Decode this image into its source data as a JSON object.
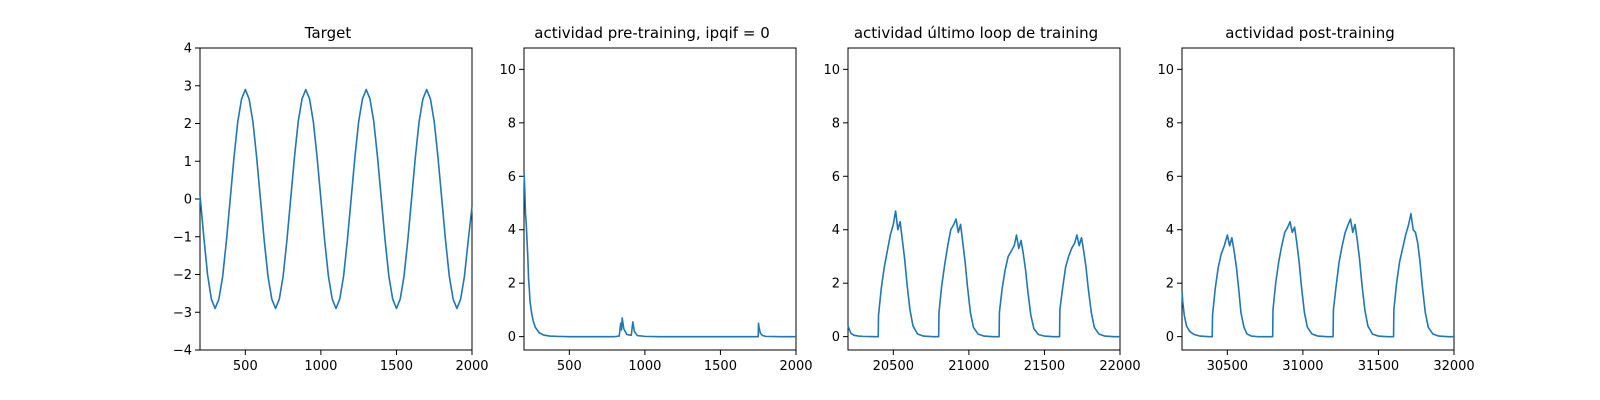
{
  "figure": {
    "background": "#ffffff"
  },
  "chart_data": [
    {
      "type": "line",
      "title": "Target",
      "xlabel": "",
      "ylabel": "",
      "xlim": [
        200,
        2000
      ],
      "ylim": [
        -4,
        4
      ],
      "xticks": [
        500,
        1000,
        1500,
        2000
      ],
      "yticks": [
        -4,
        -3,
        -2,
        -1,
        0,
        1,
        2,
        3,
        4
      ],
      "grid": false,
      "color": "#1f77b4",
      "series": [
        {
          "x": [
            200,
            225,
            250,
            275,
            300,
            325,
            350,
            375,
            400,
            425,
            450,
            475,
            500,
            525,
            550,
            575,
            600,
            625,
            650,
            675,
            700,
            725,
            750,
            775,
            800,
            825,
            850,
            875,
            900,
            925,
            950,
            975,
            1000,
            1025,
            1050,
            1075,
            1100,
            1125,
            1150,
            1175,
            1200,
            1225,
            1250,
            1275,
            1300,
            1325,
            1350,
            1375,
            1400,
            1425,
            1450,
            1475,
            1500,
            1525,
            1550,
            1575,
            1600,
            1625,
            1650,
            1675,
            1700,
            1725,
            1750,
            1775,
            1800,
            1825,
            1850,
            1875,
            1900,
            1925,
            1950,
            1975,
            2000
          ],
          "y": [
            0.1,
            -1.0,
            -2.0,
            -2.65,
            -2.9,
            -2.65,
            -2.05,
            -1.1,
            0.0,
            1.1,
            2.05,
            2.65,
            2.9,
            2.65,
            2.05,
            1.1,
            0.0,
            -1.1,
            -2.05,
            -2.65,
            -2.9,
            -2.65,
            -2.05,
            -1.1,
            0.0,
            1.1,
            2.05,
            2.65,
            2.9,
            2.65,
            2.05,
            1.1,
            0.0,
            -1.1,
            -2.05,
            -2.65,
            -2.9,
            -2.65,
            -2.05,
            -1.1,
            0.0,
            1.1,
            2.05,
            2.65,
            2.9,
            2.65,
            2.05,
            1.1,
            0.0,
            -1.1,
            -2.05,
            -2.65,
            -2.9,
            -2.65,
            -2.05,
            -1.1,
            0.0,
            1.1,
            2.05,
            2.65,
            2.9,
            2.65,
            2.05,
            1.1,
            0.0,
            -1.1,
            -2.05,
            -2.65,
            -2.9,
            -2.65,
            -2.05,
            -1.1,
            -0.2
          ]
        }
      ]
    },
    {
      "type": "line",
      "title": "actividad pre-training, ipqif = 0",
      "xlabel": "",
      "ylabel": "",
      "xlim": [
        200,
        2000
      ],
      "ylim": [
        -0.5,
        10.8
      ],
      "xticks": [
        500,
        1000,
        1500,
        2000
      ],
      "yticks": [
        0,
        2,
        4,
        6,
        8,
        10
      ],
      "grid": false,
      "color": "#1f77b4",
      "series": [
        {
          "x": [
            200,
            205,
            210,
            215,
            220,
            225,
            230,
            235,
            240,
            250,
            260,
            275,
            300,
            330,
            370,
            420,
            500,
            600,
            700,
            800,
            830,
            840,
            845,
            850,
            860,
            880,
            910,
            920,
            930,
            950,
            1000,
            1100,
            1200,
            1300,
            1400,
            1500,
            1600,
            1700,
            1750,
            1752,
            1755,
            1765,
            1780,
            1800,
            1900,
            2000
          ],
          "y": [
            6.2,
            5.5,
            4.6,
            4.2,
            3.6,
            3.0,
            2.2,
            1.8,
            1.3,
            0.9,
            0.6,
            0.35,
            0.15,
            0.06,
            0.02,
            0.01,
            0.0,
            0.0,
            0.0,
            0.0,
            0.02,
            0.5,
            0.25,
            0.7,
            0.3,
            0.08,
            0.05,
            0.55,
            0.2,
            0.04,
            0.01,
            0.0,
            0.0,
            0.0,
            0.0,
            0.0,
            0.0,
            0.0,
            0.0,
            0.5,
            0.35,
            0.12,
            0.04,
            0.01,
            0.0,
            0.0
          ]
        }
      ]
    },
    {
      "type": "line",
      "title": "actividad último loop de training",
      "xlabel": "",
      "ylabel": "",
      "xlim": [
        20200,
        22000
      ],
      "ylim": [
        -0.5,
        10.8
      ],
      "xticks": [
        20500,
        21000,
        21500,
        22000
      ],
      "yticks": [
        0,
        2,
        4,
        6,
        8,
        10
      ],
      "grid": false,
      "color": "#1f77b4",
      "series": [
        {
          "x": [
            20200,
            20210,
            20220,
            20240,
            20270,
            20300,
            20380,
            20400,
            20402,
            20420,
            20440,
            20460,
            20480,
            20500,
            20515,
            20530,
            20545,
            20560,
            20575,
            20590,
            20610,
            20630,
            20660,
            20700,
            20760,
            20800,
            20802,
            20820,
            20840,
            20860,
            20880,
            20900,
            20915,
            20930,
            20945,
            20960,
            20975,
            20990,
            21010,
            21030,
            21060,
            21100,
            21160,
            21200,
            21202,
            21220,
            21240,
            21260,
            21280,
            21300,
            21315,
            21330,
            21345,
            21360,
            21375,
            21390,
            21410,
            21430,
            21460,
            21500,
            21560,
            21600,
            21602,
            21620,
            21640,
            21660,
            21680,
            21700,
            21715,
            21730,
            21745,
            21760,
            21775,
            21790,
            21810,
            21830,
            21860,
            21900,
            21960,
            22000
          ],
          "y": [
            0.4,
            0.25,
            0.12,
            0.05,
            0.02,
            0.01,
            0.0,
            0.0,
            0.8,
            1.8,
            2.6,
            3.2,
            3.8,
            4.2,
            4.7,
            4.0,
            4.3,
            3.6,
            2.9,
            2.0,
            1.0,
            0.4,
            0.1,
            0.02,
            0.0,
            0.0,
            0.9,
            1.9,
            2.7,
            3.4,
            4.0,
            4.2,
            4.4,
            3.9,
            4.2,
            3.5,
            2.8,
            1.9,
            0.9,
            0.35,
            0.1,
            0.02,
            0.0,
            0.0,
            0.9,
            1.8,
            2.5,
            3.0,
            3.2,
            3.4,
            3.8,
            3.3,
            3.6,
            3.1,
            2.5,
            1.7,
            0.8,
            0.3,
            0.08,
            0.02,
            0.0,
            0.0,
            1.0,
            1.8,
            2.6,
            3.0,
            3.3,
            3.5,
            3.8,
            3.4,
            3.7,
            3.2,
            2.6,
            1.8,
            0.9,
            0.35,
            0.1,
            0.02,
            0.0,
            0.0
          ]
        }
      ]
    },
    {
      "type": "line",
      "title": "actividad post-training",
      "xlabel": "",
      "ylabel": "",
      "xlim": [
        30200,
        32000
      ],
      "ylim": [
        -0.5,
        10.8
      ],
      "xticks": [
        30500,
        31000,
        31500,
        32000
      ],
      "yticks": [
        0,
        2,
        4,
        6,
        8,
        10
      ],
      "grid": false,
      "color": "#1f77b4",
      "series": [
        {
          "x": [
            30200,
            30205,
            30215,
            30230,
            30250,
            30280,
            30320,
            30380,
            30400,
            30402,
            30420,
            30440,
            30460,
            30480,
            30500,
            30515,
            30530,
            30545,
            30560,
            30575,
            30590,
            30610,
            30630,
            30660,
            30700,
            30760,
            30800,
            30802,
            30820,
            30840,
            30860,
            30880,
            30900,
            30915,
            30930,
            30945,
            30960,
            30975,
            30990,
            31010,
            31030,
            31060,
            31100,
            31160,
            31200,
            31202,
            31220,
            31240,
            31260,
            31280,
            31300,
            31315,
            31330,
            31345,
            31360,
            31375,
            31390,
            31410,
            31430,
            31460,
            31500,
            31560,
            31600,
            31602,
            31620,
            31640,
            31660,
            31680,
            31700,
            31715,
            31730,
            31745,
            31760,
            31775,
            31790,
            31810,
            31830,
            31860,
            31900,
            31960,
            32000
          ],
          "y": [
            1.7,
            1.3,
            0.8,
            0.4,
            0.2,
            0.08,
            0.02,
            0.0,
            0.0,
            0.8,
            1.8,
            2.6,
            3.1,
            3.4,
            3.8,
            3.4,
            3.7,
            3.2,
            2.6,
            1.8,
            0.9,
            0.35,
            0.1,
            0.02,
            0.0,
            0.0,
            0.0,
            1.0,
            2.0,
            2.8,
            3.4,
            3.9,
            4.1,
            4.3,
            3.9,
            4.1,
            3.5,
            2.8,
            1.9,
            0.9,
            0.35,
            0.1,
            0.02,
            0.0,
            0.0,
            1.0,
            1.9,
            2.8,
            3.4,
            3.9,
            4.2,
            4.4,
            3.9,
            4.2,
            3.6,
            2.9,
            2.0,
            1.0,
            0.4,
            0.1,
            0.02,
            0.0,
            0.0,
            1.0,
            2.0,
            2.8,
            3.3,
            3.8,
            4.2,
            4.6,
            4.0,
            3.9,
            3.5,
            2.8,
            1.9,
            0.9,
            0.35,
            0.1,
            0.02,
            0.0,
            0.0
          ]
        }
      ]
    }
  ]
}
